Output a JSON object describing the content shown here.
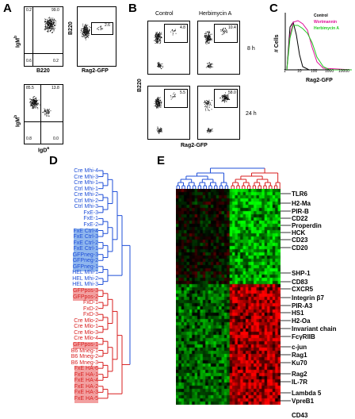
{
  "panels": {
    "A": {
      "label": "A",
      "plot1": {
        "ylabel": "IgM",
        "ysup": "b",
        "xlabel": "B220",
        "q": [
          "0.2",
          "99.0",
          "0.6",
          "0.2"
        ]
      },
      "plot2": {
        "ylabel": "B220",
        "xlabel": "Rag2-GFP",
        "gate": "2.6"
      },
      "plot3": {
        "ylabel": "IgM",
        "ysup": "b",
        "xlabel": "IgD",
        "xsup": "a",
        "q": [
          "85.5",
          "13.8",
          "0.8",
          "0.0"
        ]
      }
    },
    "B": {
      "label": "B",
      "col1": "Control",
      "col2": "Herbimycin A",
      "row1": "8 h",
      "row2": "24 h",
      "ylabel": "B220",
      "xlabel": "Rag2-GFP",
      "gates": [
        "4.8",
        "10.4",
        "5.5",
        "58.0"
      ]
    },
    "C": {
      "label": "C",
      "ylabel": "# Cells",
      "xlabel": "Rag2-GFP",
      "ticks": [
        "1",
        "10",
        "100",
        "1000",
        "10000"
      ],
      "legend": [
        {
          "name": "Control",
          "color": "#000000"
        },
        {
          "name": "Wortmannin",
          "color": "#e0109a"
        },
        {
          "name": "Herbimycin A",
          "color": "#22cc22"
        }
      ]
    },
    "D": {
      "label": "D",
      "samples_blue": [
        "Cre Mhi-4",
        "Cre Mhi-3",
        "Cre Mhi-1",
        "Ctrl Mhi-1",
        "Cre Mhi-2",
        "Ctrl Mhi-2",
        "Ctrl Mhi-3",
        "FxE-3",
        "FxE-1",
        "FxE-2",
        "FxE Ctrl-4",
        "FxE Ctrl-3",
        "FxE Ctrl-2",
        "FxE Ctrl-1",
        "GFPneg-3",
        "GFPneg-2",
        "GFPneg-1",
        "HEL Mhi-1",
        "HEL Mhi-2",
        "HEL Mhi-3"
      ],
      "samples_red": [
        "GFPpos-3",
        "GFPpos-2",
        "FxD-1",
        "FxD-2",
        "FxD-3",
        "Cre Mlo-2",
        "Cre Mlo-1",
        "Cre Mlo-3",
        "Cre Mlo-4",
        "GFPpos-1",
        "B6 Mneg-1",
        "B6 Mneg-2",
        "B6 Mneg-3",
        "FxE HA-6",
        "FxE HA-1",
        "FxE HA-4",
        "FxE HA-2",
        "FxE HA-3",
        "FxE HA-5"
      ],
      "highlight_blue": [
        10,
        11,
        12,
        13,
        14,
        15,
        16
      ],
      "highlight_red": [
        0,
        1,
        9,
        13,
        14,
        15,
        16,
        17,
        18
      ]
    },
    "E": {
      "label": "E",
      "genes": [
        {
          "name": "TLR6",
          "y": 0
        },
        {
          "name": "H2-Ma",
          "y": 1
        },
        {
          "name": "PIR-B",
          "y": 2
        },
        {
          "name": "CD22",
          "y": 3
        },
        {
          "name": "Properdin",
          "y": 4
        },
        {
          "name": "HCK",
          "y": 5
        },
        {
          "name": "CD23",
          "y": 6
        },
        {
          "name": "CD20",
          "y": 7
        },
        {
          "name": "SHP-1",
          "y": 8
        },
        {
          "name": "CD83",
          "y": 9
        },
        {
          "name": "CXCR5",
          "y": 10
        },
        {
          "name": "Integrin β7",
          "y": 11
        },
        {
          "name": "PIR-A3",
          "y": 12
        },
        {
          "name": "HS1",
          "y": 13
        },
        {
          "name": "H2-Oa",
          "y": 14
        },
        {
          "name": "Invariant chain",
          "y": 15
        },
        {
          "name": "FcγRIIB",
          "y": 16
        },
        {
          "name": "c-jun",
          "y": 17
        },
        {
          "name": "Rag1",
          "y": 18
        },
        {
          "name": "Ku70",
          "y": 19
        },
        {
          "name": "Rag2",
          "y": 20
        },
        {
          "name": "IL-7R",
          "y": 21
        },
        {
          "name": "Lambda 5",
          "y": 22
        },
        {
          "name": "VpreB1",
          "y": 23
        },
        {
          "name": "CD43",
          "y": 24
        }
      ]
    }
  }
}
